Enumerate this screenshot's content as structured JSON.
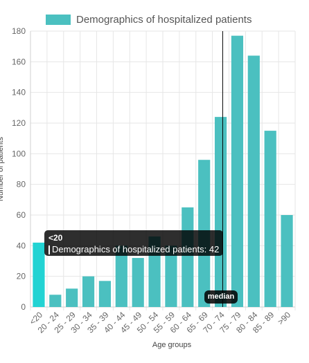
{
  "chart_data": {
    "type": "bar",
    "categories": [
      "<20",
      "20 - 24",
      "25 - 29",
      "30 - 34",
      "35 - 39",
      "40 - 44",
      "45 - 49",
      "50 - 54",
      "55 - 59",
      "60 - 64",
      "65 - 69",
      "70 - 74",
      "75 - 79",
      "80 - 84",
      "85 - 89",
      ">90"
    ],
    "series": [
      {
        "name": "Demographics of hospitalized patients",
        "values": [
          42,
          8,
          12,
          20,
          17,
          40,
          32,
          46,
          40,
          65,
          96,
          124,
          177,
          164,
          115,
          60
        ]
      }
    ],
    "xlabel": "Age groups",
    "ylabel": "Number of patients",
    "ylim": [
      0,
      180
    ],
    "yticks": [
      0,
      20,
      40,
      60,
      80,
      100,
      120,
      140,
      160,
      180
    ],
    "grid": true,
    "legend_position": "top",
    "bar_color": "#4bc0c0",
    "hover_bar_color": "#22d3d3",
    "median_category": "70 - 74",
    "annotation_label": "median",
    "tooltip": {
      "title": "<20",
      "series_name": "Demographics of hospitalized patients",
      "value": "42"
    }
  },
  "legend": {
    "label": "Demographics of hospitalized patients"
  },
  "tooltip": {
    "title": "<20",
    "text": "Demographics of hospitalized patients: 42"
  },
  "median": {
    "label": "median"
  }
}
